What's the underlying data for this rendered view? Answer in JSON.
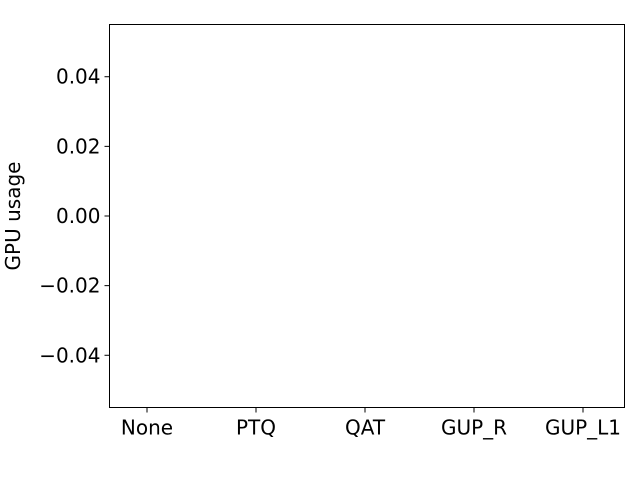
{
  "chart_data": {
    "type": "bar",
    "title": "",
    "xlabel": "",
    "ylabel": "GPU usage",
    "categories": [
      "None",
      "PTQ",
      "QAT",
      "GUP_R",
      "GUP_L1"
    ],
    "series": [
      {
        "name": "GPU usage",
        "values": [
          0,
          0,
          0,
          0,
          0
        ]
      }
    ],
    "ylim": [
      -0.055,
      0.055
    ],
    "yticks": [
      -0.04,
      -0.02,
      0.0,
      0.02,
      0.04
    ],
    "ytick_labels": [
      "−0.04",
      "−0.02",
      "0.00",
      "0.02",
      "0.04"
    ],
    "grid": false,
    "legend": "none"
  },
  "colors": {
    "axes": "#000000",
    "background": "#ffffff",
    "bar": "#1f77b4"
  }
}
